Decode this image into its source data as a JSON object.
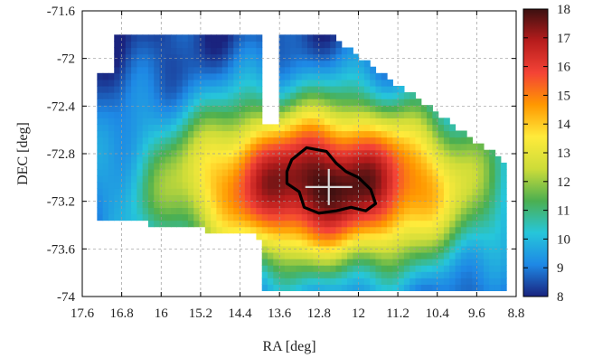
{
  "chart_data": {
    "type": "heatmap",
    "title": "",
    "xlabel": "RA [deg]",
    "ylabel": "DEC [deg]",
    "x_axis": {
      "reversed": true,
      "range": [
        17.6,
        8.8
      ],
      "ticks": [
        17.6,
        16.8,
        16,
        15.2,
        14.4,
        13.6,
        12.8,
        12,
        11.2,
        10.4,
        9.6,
        8.8
      ],
      "tick_labels": [
        "17.6",
        "16.8",
        "16",
        "15.2",
        "14.4",
        "13.6",
        "12.8",
        "12",
        "11.2",
        "10.4",
        "9.6",
        "8.8"
      ]
    },
    "y_axis": {
      "range": [
        -74,
        -71.6
      ],
      "ticks": [
        -71.6,
        -72,
        -72.4,
        -72.8,
        -73.2,
        -73.6,
        -74
      ],
      "tick_labels": [
        "-71.6",
        "-72",
        "-72.4",
        "-72.8",
        "-73.2",
        "-73.6",
        "-74"
      ]
    },
    "grid": true,
    "colorbar": {
      "range": [
        8,
        18
      ],
      "ticks": [
        8,
        9,
        10,
        11,
        12,
        13,
        14,
        15,
        16,
        17,
        18
      ],
      "tick_labels": [
        "8",
        "9",
        "10",
        "11",
        "12",
        "13",
        "14",
        "15",
        "16",
        "17",
        "18"
      ],
      "colormap": [
        "#1a237e",
        "#1e88e5",
        "#26c6da",
        "#4caf50",
        "#cddc39",
        "#ffeb3b",
        "#ff9800",
        "#f44336",
        "#b71c1c",
        "#3b1010"
      ]
    },
    "field": {
      "peak": {
        "ra": 12.7,
        "dec": -73.05,
        "value": 18
      },
      "extent_ra": [
        17.3,
        9.0
      ],
      "extent_dec": [
        -73.95,
        -71.8
      ]
    },
    "annotations": [
      {
        "type": "cross",
        "ra": 12.6,
        "dec": -73.08,
        "color": "#d9d9d9"
      },
      {
        "type": "contour",
        "color": "#000000",
        "level": 17
      }
    ]
  }
}
